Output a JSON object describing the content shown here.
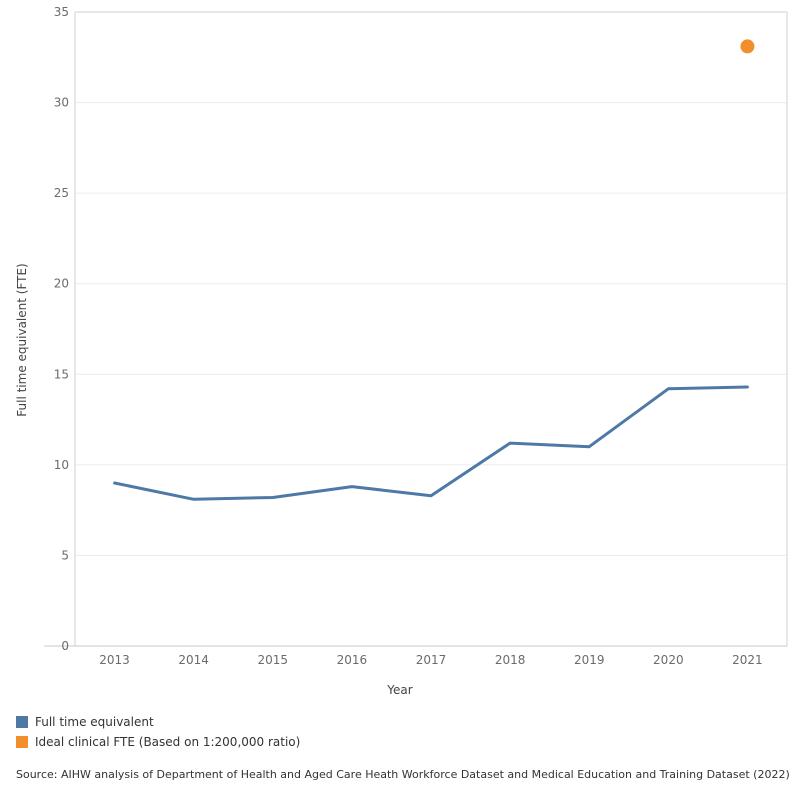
{
  "chart_data": {
    "type": "line",
    "title": "",
    "xlabel": "Year",
    "ylabel": "Full time equivalent (FTE)",
    "x": [
      "2013",
      "2014",
      "2015",
      "2016",
      "2017",
      "2018",
      "2019",
      "2020",
      "2021"
    ],
    "ylim": [
      0,
      35
    ],
    "yticks": [
      "0",
      "5",
      "10",
      "15",
      "20",
      "25",
      "30",
      "35"
    ],
    "grid": true,
    "legend_position": "bottom-left",
    "series": [
      {
        "name": "Full time equivalent",
        "type": "line",
        "color": "#4e79a7",
        "x": [
          "2013",
          "2014",
          "2015",
          "2016",
          "2017",
          "2018",
          "2019",
          "2020",
          "2021"
        ],
        "values": [
          9.0,
          8.1,
          8.2,
          8.8,
          8.3,
          11.2,
          11.0,
          14.2,
          14.3
        ]
      },
      {
        "name": "Ideal clinical FTE (Based on 1:200,000 ratio)",
        "type": "point",
        "color": "#f28e2b",
        "x": [
          "2021"
        ],
        "values": [
          33.1
        ]
      }
    ]
  },
  "source_note": "Source: AIHW analysis of Department of Health and Aged Care Heath Workforce Dataset and Medical Education and Training Dataset (2022)"
}
